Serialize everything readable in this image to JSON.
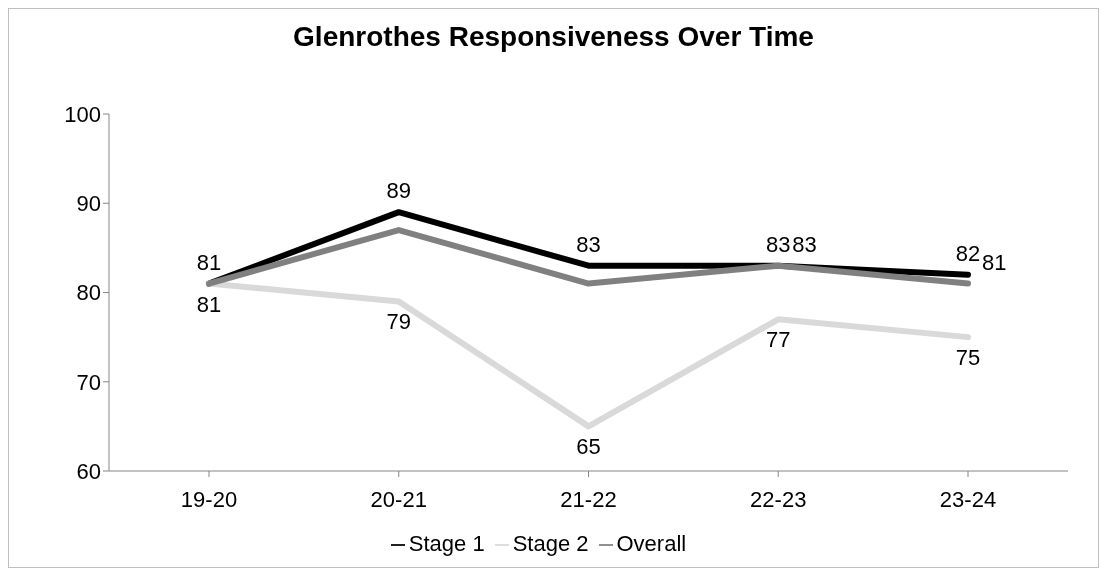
{
  "chart_data": {
    "type": "line",
    "title": "Glenrothes Responsiveness Over Time",
    "categories": [
      "19-20",
      "20-21",
      "21-22",
      "22-23",
      "23-24"
    ],
    "series": [
      {
        "name": "Stage 1",
        "color": "#000000",
        "values": [
          81,
          89,
          83,
          83,
          82
        ],
        "value_labels": [
          "81",
          "89",
          "83",
          "83",
          "82"
        ]
      },
      {
        "name": "Stage 2",
        "color": "#d9d9d9",
        "values": [
          81,
          79,
          65,
          77,
          75
        ],
        "value_labels": [
          "81",
          "79",
          "65",
          "77",
          "75"
        ]
      },
      {
        "name": "Overall",
        "color": "#808080",
        "values": [
          81,
          87,
          81,
          83,
          81
        ],
        "value_labels": [
          null,
          null,
          null,
          "83",
          "81"
        ]
      }
    ],
    "ylim": [
      60,
      100
    ],
    "yticks": [
      60,
      70,
      80,
      90,
      100
    ],
    "grid": false,
    "legend": "bottom",
    "marker": "none",
    "line_style": "solid"
  }
}
